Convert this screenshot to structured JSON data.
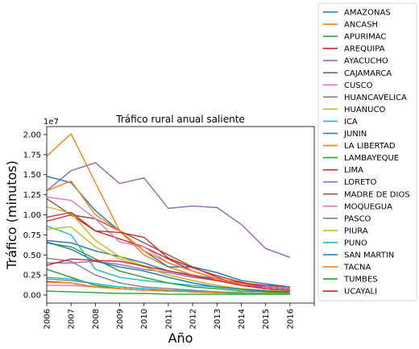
{
  "chart_data": {
    "type": "line",
    "title": "Tráfico rural anual saliente",
    "xlabel": "Año",
    "ylabel": "Tráfico (minutos)",
    "y_offset_label": "1e7",
    "x": [
      "2006",
      "2007",
      "2008",
      "2009",
      "2010",
      "2011",
      "2012",
      "2013",
      "2014",
      "2015",
      "2016"
    ],
    "xlim": [
      2006,
      2017
    ],
    "ylim": [
      -0.1,
      2.1
    ],
    "yticks": [
      0.0,
      0.25,
      0.5,
      0.75,
      1.0,
      1.25,
      1.5,
      1.75,
      2.0
    ],
    "ytick_labels": [
      "0.00",
      "0.25",
      "0.50",
      "0.75",
      "1.00",
      "1.25",
      "1.50",
      "1.75",
      "2.00"
    ],
    "grid": false,
    "legend_position": "outside-right",
    "series": [
      {
        "name": "AMAZONAS",
        "color": "#1f77b4",
        "values": [
          0.68,
          0.65,
          0.55,
          0.48,
          0.4,
          0.3,
          0.25,
          0.2,
          0.15,
          0.12,
          0.1
        ]
      },
      {
        "name": "ANCASH",
        "color": "#ff7f0e",
        "values": [
          1.73,
          2.01,
          1.4,
          0.8,
          0.5,
          0.35,
          0.25,
          0.18,
          0.12,
          0.1,
          0.08
        ]
      },
      {
        "name": "APURIMAC",
        "color": "#2ca02c",
        "values": [
          0.32,
          0.22,
          0.12,
          0.08,
          0.06,
          0.05,
          0.04,
          0.03,
          0.02,
          0.02,
          0.01
        ]
      },
      {
        "name": "AREQUIPA",
        "color": "#d62728",
        "values": [
          0.92,
          1.0,
          0.8,
          0.7,
          0.6,
          0.45,
          0.3,
          0.2,
          0.15,
          0.12,
          0.1
        ]
      },
      {
        "name": "AYACUCHO",
        "color": "#9467bd",
        "values": [
          1.3,
          1.55,
          1.65,
          1.39,
          1.46,
          1.08,
          1.11,
          1.09,
          0.88,
          0.58,
          0.47
        ]
      },
      {
        "name": "CAJAMARCA",
        "color": "#8c564b",
        "values": [
          1.2,
          1.0,
          0.95,
          0.8,
          0.65,
          0.5,
          0.35,
          0.22,
          0.12,
          0.08,
          0.06
        ]
      },
      {
        "name": "CUSCO",
        "color": "#e377c2",
        "values": [
          1.22,
          1.18,
          0.95,
          0.66,
          0.6,
          0.4,
          0.3,
          0.2,
          0.12,
          0.08,
          0.06
        ]
      },
      {
        "name": "HUANCAVELICA",
        "color": "#7f7f7f",
        "values": [
          0.46,
          0.42,
          0.25,
          0.15,
          0.1,
          0.08,
          0.06,
          0.04,
          0.03,
          0.02,
          0.02
        ]
      },
      {
        "name": "HUANUCO",
        "color": "#bcbd22",
        "values": [
          1.1,
          1.02,
          0.68,
          0.48,
          0.36,
          0.25,
          0.18,
          0.12,
          0.08,
          0.05,
          0.04
        ]
      },
      {
        "name": "ICA",
        "color": "#17becf",
        "values": [
          0.86,
          0.75,
          0.32,
          0.22,
          0.18,
          0.15,
          0.12,
          0.1,
          0.08,
          0.06,
          0.05
        ]
      },
      {
        "name": "JUNIN",
        "color": "#1f77b4",
        "values": [
          1.48,
          1.4,
          1.05,
          0.8,
          0.55,
          0.35,
          0.35,
          0.28,
          0.18,
          0.14,
          0.1
        ]
      },
      {
        "name": "LA LIBERTAD",
        "color": "#ff7f0e",
        "values": [
          1.3,
          1.42,
          1.0,
          0.8,
          0.55,
          0.4,
          0.3,
          0.2,
          0.14,
          0.1,
          0.08
        ]
      },
      {
        "name": "LAMBAYEQUE",
        "color": "#2ca02c",
        "values": [
          0.65,
          0.6,
          0.45,
          0.3,
          0.22,
          0.15,
          0.1,
          0.08,
          0.05,
          0.04,
          0.03
        ]
      },
      {
        "name": "LIMA",
        "color": "#d62728",
        "values": [
          0.97,
          1.03,
          0.8,
          0.78,
          0.72,
          0.46,
          0.34,
          0.24,
          0.16,
          0.1,
          0.08
        ]
      },
      {
        "name": "LORETO",
        "color": "#9467bd",
        "values": [
          0.4,
          0.4,
          0.42,
          0.38,
          0.32,
          0.28,
          0.22,
          0.18,
          0.12,
          0.1,
          0.08
        ]
      },
      {
        "name": "MADRE DE DIOS",
        "color": "#8c564b",
        "values": [
          0.17,
          0.15,
          0.1,
          0.08,
          0.06,
          0.05,
          0.04,
          0.03,
          0.03,
          0.02,
          0.02
        ]
      },
      {
        "name": "MOQUEGUA",
        "color": "#e377c2",
        "values": [
          0.12,
          0.12,
          0.1,
          0.08,
          0.06,
          0.05,
          0.04,
          0.03,
          0.02,
          0.02,
          0.02
        ]
      },
      {
        "name": "PASCO",
        "color": "#7f7f7f",
        "values": [
          0.2,
          0.18,
          0.14,
          0.1,
          0.08,
          0.06,
          0.05,
          0.04,
          0.03,
          0.02,
          0.02
        ]
      },
      {
        "name": "PIURA",
        "color": "#bcbd22",
        "values": [
          0.82,
          0.85,
          0.6,
          0.45,
          0.35,
          0.25,
          0.18,
          0.12,
          0.08,
          0.06,
          0.05
        ]
      },
      {
        "name": "PUNO",
        "color": "#17becf",
        "values": [
          0.22,
          0.2,
          0.14,
          0.1,
          0.08,
          0.06,
          0.05,
          0.04,
          0.03,
          0.02,
          0.02
        ]
      },
      {
        "name": "SAN MARTIN",
        "color": "#1f77b4",
        "values": [
          0.66,
          0.57,
          0.42,
          0.35,
          0.3,
          0.22,
          0.15,
          0.1,
          0.07,
          0.05,
          0.04
        ]
      },
      {
        "name": "TACNA",
        "color": "#ff7f0e",
        "values": [
          0.16,
          0.15,
          0.1,
          0.08,
          0.06,
          0.05,
          0.04,
          0.03,
          0.02,
          0.02,
          0.02
        ]
      },
      {
        "name": "TUMBES",
        "color": "#2ca02c",
        "values": [
          0.05,
          0.04,
          0.03,
          0.02,
          0.02,
          0.01,
          0.01,
          0.01,
          0.01,
          0.01,
          0.01
        ]
      },
      {
        "name": "UCAYALI",
        "color": "#d62728",
        "values": [
          0.37,
          0.45,
          0.43,
          0.42,
          0.36,
          0.3,
          0.24,
          0.18,
          0.12,
          0.08,
          0.06
        ]
      }
    ]
  }
}
